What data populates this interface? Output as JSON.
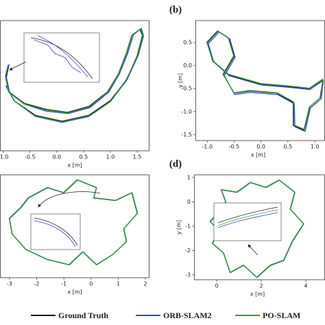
{
  "chart_data": [
    {
      "type": "line",
      "xlabel": "x [m]",
      "xlim": [
        -1.06,
        1.73
      ],
      "ylim": [
        -1.2,
        1.0
      ],
      "xticks": [
        {
          "value": -1,
          "label": "-1.0"
        },
        -0.5,
        {
          "value": 0,
          "label": "0.0"
        },
        0.5,
        {
          "value": 1,
          "label": "1.0"
        },
        1.5
      ],
      "series": [
        {
          "color": "#111111",
          "x": [
            -0.9,
            -0.95,
            -0.9,
            -0.6,
            -0.2,
            0.2,
            0.6,
            0.95,
            1.15,
            1.3,
            1.4,
            1.55,
            1.6,
            1.5,
            1.3,
            1.0,
            0.6,
            0.1,
            -0.4,
            -0.8,
            -0.95
          ],
          "values": [
            0.25,
            0.05,
            -0.2,
            -0.4,
            -0.5,
            -0.55,
            -0.45,
            -0.2,
            0.1,
            0.45,
            0.75,
            0.85,
            0.75,
            0.4,
            0.0,
            -0.35,
            -0.6,
            -0.7,
            -0.6,
            -0.35,
            -0.1
          ]
        },
        {
          "color": "#3a44b8",
          "x": [
            -0.89,
            -0.94,
            -0.88,
            -0.58,
            -0.2,
            0.21,
            0.62,
            0.97,
            1.17,
            1.32,
            1.43,
            1.58,
            1.62,
            1.52,
            1.31,
            1.0,
            0.6,
            0.1,
            -0.4,
            -0.79,
            -0.94
          ],
          "values": [
            0.26,
            0.04,
            -0.22,
            -0.42,
            -0.53,
            -0.57,
            -0.47,
            -0.21,
            0.1,
            0.44,
            0.76,
            0.87,
            0.74,
            0.41,
            0.0,
            -0.37,
            -0.62,
            -0.72,
            -0.62,
            -0.36,
            -0.1
          ]
        },
        {
          "color": "#3a9a3a",
          "x": [
            -0.91,
            -0.96,
            -0.9,
            -0.61,
            -0.21,
            0.2,
            0.61,
            0.96,
            1.16,
            1.31,
            1.41,
            1.56,
            1.61,
            1.51,
            1.3,
            1.01,
            0.61,
            0.1,
            -0.41,
            -0.8,
            -0.95
          ],
          "values": [
            0.25,
            0.06,
            -0.21,
            -0.41,
            -0.51,
            -0.56,
            -0.46,
            -0.2,
            0.11,
            0.46,
            0.76,
            0.86,
            0.75,
            0.4,
            0.01,
            -0.36,
            -0.61,
            -0.71,
            -0.61,
            -0.35,
            -0.11
          ]
        }
      ]
    },
    {
      "type": "line",
      "panel": "(b)",
      "xlabel": "x [m]",
      "ylabel": "y [m]",
      "xlim": [
        -1.22,
        1.19
      ],
      "ylim": [
        -1.63,
        0.98
      ],
      "xticks": [
        {
          "value": -1,
          "label": "-1.0"
        },
        -0.5,
        {
          "value": 0,
          "label": "0.0"
        },
        0.5,
        {
          "value": 1,
          "label": "1.0"
        }
      ],
      "yticks": [
        0.5,
        {
          "value": 0,
          "label": "0.0"
        },
        -0.5,
        {
          "value": -1,
          "label": "-1.0"
        },
        -1.5
      ],
      "series": [
        {
          "color": "#111111",
          "x": [
            -1.0,
            -0.8,
            -0.6,
            -0.5,
            -0.7,
            -0.5,
            -0.2,
            0.3,
            0.6,
            0.6,
            0.8,
            0.9,
            1.1,
            1.15,
            0.9,
            0.5,
            0.0,
            -0.6,
            -0.9,
            -1.0
          ],
          "values": [
            0.5,
            0.75,
            0.6,
            0.2,
            -0.2,
            -0.6,
            -0.55,
            -0.6,
            -0.8,
            -1.3,
            -1.4,
            -0.9,
            -0.7,
            -0.3,
            -0.5,
            -0.45,
            -0.4,
            -0.2,
            0.1,
            0.5
          ]
        },
        {
          "color": "#3a44b8",
          "x": [
            -0.98,
            -0.78,
            -0.58,
            -0.48,
            -0.68,
            -0.49,
            -0.2,
            0.31,
            0.62,
            0.63,
            0.82,
            0.92,
            1.12,
            1.16,
            0.91,
            0.5,
            0.0,
            -0.59,
            -0.88,
            -0.98
          ],
          "values": [
            0.48,
            0.73,
            0.58,
            0.18,
            -0.22,
            -0.63,
            -0.58,
            -0.63,
            -0.83,
            -1.33,
            -1.43,
            -0.92,
            -0.72,
            -0.32,
            -0.52,
            -0.47,
            -0.42,
            -0.22,
            0.08,
            0.48
          ]
        },
        {
          "color": "#3a9a3a",
          "x": [
            -1.01,
            -0.81,
            -0.61,
            -0.51,
            -0.71,
            -0.5,
            -0.21,
            0.3,
            0.61,
            0.61,
            0.81,
            0.91,
            1.11,
            1.15,
            0.9,
            0.5,
            0.0,
            -0.6,
            -0.9,
            -1.01
          ],
          "values": [
            0.51,
            0.76,
            0.61,
            0.21,
            -0.19,
            -0.59,
            -0.54,
            -0.59,
            -0.79,
            -1.29,
            -1.39,
            -0.89,
            -0.69,
            -0.29,
            -0.49,
            -0.44,
            -0.39,
            -0.19,
            0.11,
            0.51
          ]
        }
      ]
    },
    {
      "type": "line",
      "xlabel": "x [m]",
      "xlim": [
        -3.35,
        2.15
      ],
      "ylim": [
        -2.5,
        1.5
      ],
      "xticks": [
        -3,
        -2,
        -1,
        0,
        1,
        2
      ],
      "series": [
        {
          "color": "#111111",
          "x": [
            -2.6,
            -2.3,
            -1.6,
            -1.0,
            -0.5,
            0.2,
            0.1,
            0.9,
            1.5,
            1.7,
            1.2,
            1.3,
            0.8,
            0.2,
            -0.3,
            -0.8,
            -1.6,
            -2.4,
            -2.9,
            -3.0,
            -2.6
          ],
          "values": [
            0.2,
            0.6,
            1.0,
            0.8,
            1.3,
            1.0,
            0.6,
            0.5,
            0.8,
            0.0,
            -0.6,
            -1.1,
            -1.6,
            -2.0,
            -1.5,
            -2.0,
            -1.8,
            -1.4,
            -0.8,
            -0.2,
            0.2
          ]
        },
        {
          "color": "#3a44b8",
          "x": [
            -2.61,
            -2.31,
            -1.61,
            -1.01,
            -0.51,
            0.2,
            0.1,
            0.9,
            1.51,
            1.71,
            1.21,
            1.31,
            0.81,
            0.2,
            -0.3,
            -0.81,
            -1.61,
            -2.41,
            -2.91,
            -3.01,
            -2.61
          ],
          "values": [
            0.21,
            0.61,
            1.01,
            0.81,
            1.31,
            1.01,
            0.61,
            0.51,
            0.81,
            0.01,
            -0.59,
            -1.09,
            -1.59,
            -1.99,
            -1.49,
            -1.99,
            -1.79,
            -1.39,
            -0.79,
            -0.19,
            0.21
          ]
        },
        {
          "color": "#3a9a3a",
          "x": [
            -2.6,
            -2.3,
            -1.6,
            -1.0,
            -0.5,
            0.2,
            0.1,
            0.9,
            1.5,
            1.7,
            1.2,
            1.3,
            0.8,
            0.2,
            -0.3,
            -0.8,
            -1.6,
            -2.4,
            -2.9,
            -3.0,
            -2.6
          ],
          "values": [
            0.2,
            0.6,
            1.0,
            0.8,
            1.3,
            1.0,
            0.6,
            0.5,
            0.8,
            0.0,
            -0.6,
            -1.1,
            -1.6,
            -2.0,
            -1.5,
            -2.0,
            -1.8,
            -1.4,
            -0.8,
            -0.2,
            0.2
          ]
        }
      ]
    },
    {
      "type": "line",
      "panel": "(d)",
      "xlabel": "x [m]",
      "ylabel": "y [m]",
      "xlim": [
        -1.02,
        4.86
      ],
      "ylim": [
        -3.2,
        1.11
      ],
      "xticks": [
        0,
        2,
        4
      ],
      "yticks": [
        1,
        0,
        -1,
        -2,
        -3
      ],
      "series": [
        {
          "name": "Ground Truth",
          "color": "#111111",
          "x": [
            0.0,
            0.4,
            0.2,
            0.9,
            1.5,
            2.2,
            2.8,
            3.5,
            3.3,
            3.9,
            3.4,
            3.0,
            2.4,
            1.8,
            1.2,
            0.6,
            0.3,
            -0.2,
            0.1,
            -0.3,
            0.0
          ],
          "values": [
            -0.5,
            0.0,
            0.5,
            0.4,
            0.8,
            0.6,
            0.9,
            0.4,
            -0.3,
            -0.9,
            -1.6,
            -2.4,
            -2.6,
            -3.1,
            -2.6,
            -2.9,
            -2.1,
            -1.7,
            -1.2,
            -0.8,
            -0.5
          ]
        },
        {
          "name": "ORB-SLAM2",
          "color": "#3a44b8",
          "x": [
            0.01,
            0.41,
            0.21,
            0.91,
            1.51,
            2.21,
            2.81,
            3.51,
            3.31,
            3.91,
            3.41,
            3.01,
            2.41,
            1.81,
            1.21,
            0.61,
            0.31,
            -0.19,
            0.11,
            -0.29,
            0.01
          ],
          "values": [
            -0.51,
            -0.01,
            0.49,
            0.39,
            0.79,
            0.59,
            0.89,
            0.39,
            -0.31,
            -0.91,
            -1.61,
            -2.41,
            -2.61,
            -3.11,
            -2.61,
            -2.91,
            -2.11,
            -1.71,
            -1.21,
            -0.81,
            -0.51
          ]
        },
        {
          "name": "PO-SLAM",
          "color": "#3a9a3a",
          "x": [
            0.0,
            0.4,
            0.2,
            0.9,
            1.5,
            2.2,
            2.8,
            3.5,
            3.3,
            3.9,
            3.4,
            3.0,
            2.4,
            1.8,
            1.2,
            0.6,
            0.3,
            -0.2,
            0.1,
            -0.3,
            0.0
          ],
          "values": [
            -0.5,
            0.0,
            0.5,
            0.4,
            0.8,
            0.6,
            0.9,
            0.4,
            -0.3,
            -0.9,
            -1.6,
            -2.4,
            -2.6,
            -3.1,
            -2.6,
            -2.9,
            -2.1,
            -1.7,
            -1.2,
            -0.8,
            -0.5
          ]
        }
      ]
    }
  ]
}
